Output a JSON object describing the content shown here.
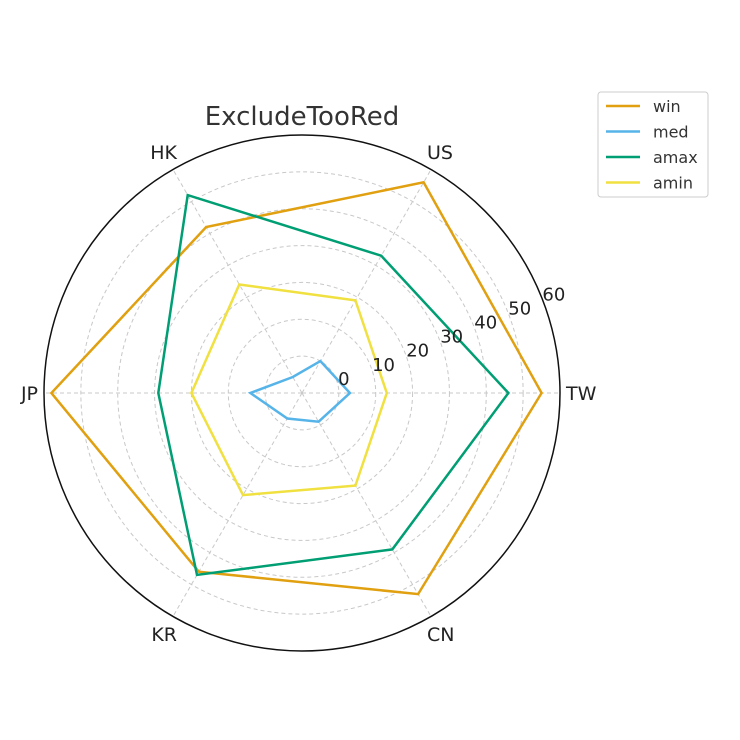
{
  "chart_data": {
    "type": "radar",
    "title": "ExcludeTooRed",
    "categories": [
      "TW",
      "US",
      "HK",
      "JP",
      "KR",
      "CN"
    ],
    "rlim": [
      -10,
      60
    ],
    "rticks": [
      0,
      10,
      20,
      30,
      40,
      50,
      60
    ],
    "grid": true,
    "legend_position": "top-right",
    "series": [
      {
        "name": "win",
        "color": "#E0A010",
        "values": [
          55,
          56,
          42,
          58,
          46,
          53
        ]
      },
      {
        "name": "med",
        "color": "#56B4E9",
        "values": [
          3,
          0,
          -5,
          4,
          -2,
          -1
        ]
      },
      {
        "name": "amax",
        "color": "#009E73",
        "values": [
          46,
          33,
          52,
          29,
          47,
          39
        ]
      },
      {
        "name": "amin",
        "color": "#F0E040",
        "values": [
          13,
          19,
          24,
          20,
          22,
          19
        ]
      }
    ]
  }
}
